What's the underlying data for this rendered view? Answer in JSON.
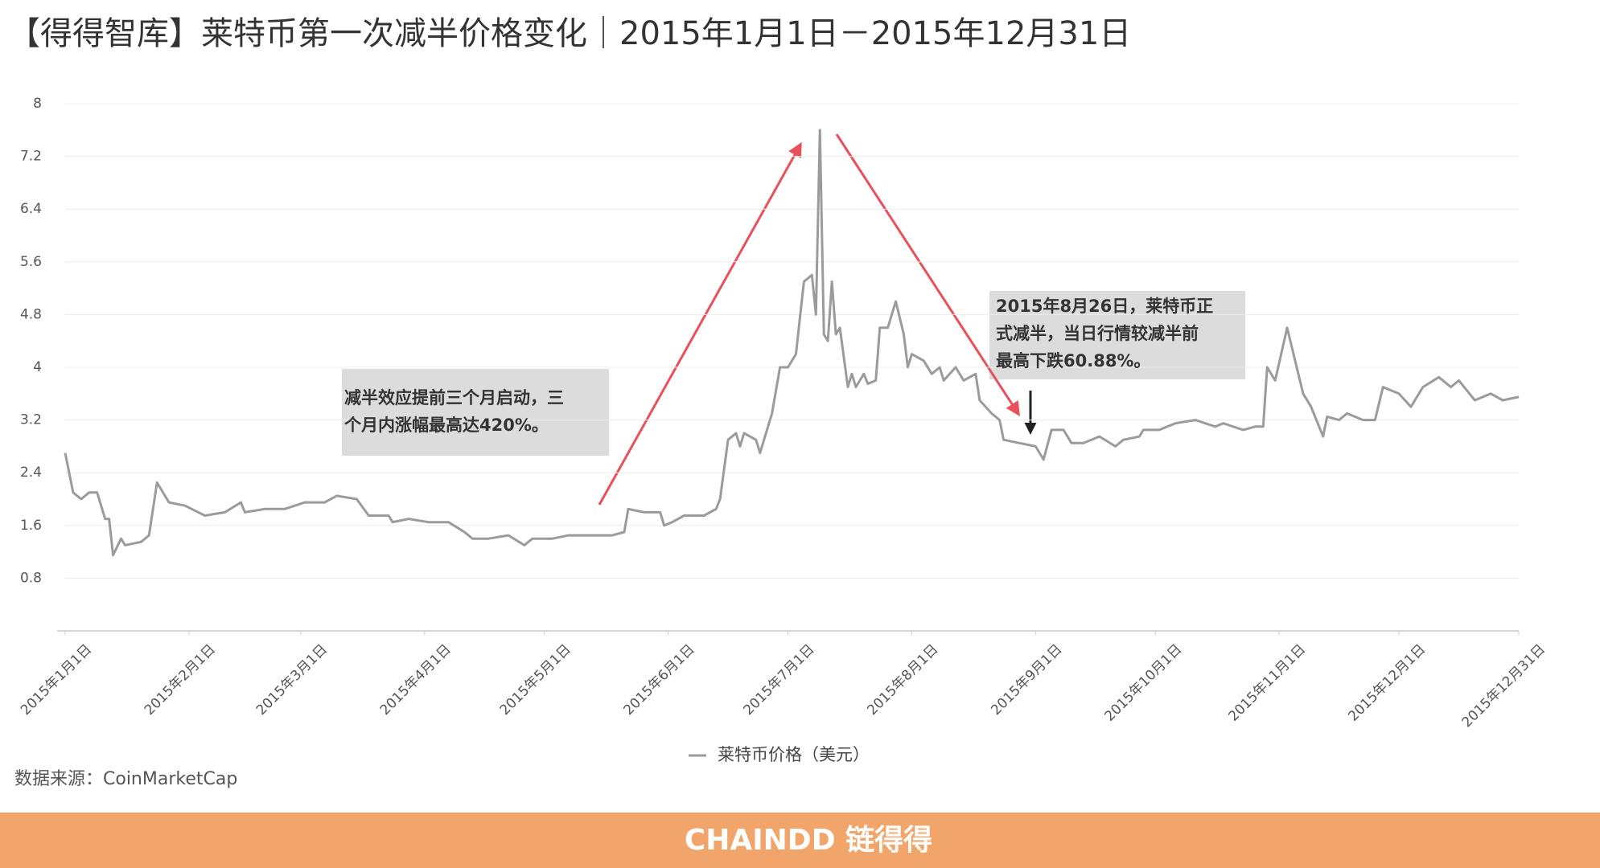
{
  "chart_data": {
    "type": "line",
    "title": "【得得智库】莱特币第一次减半价格变化｜2015年1月1日－2015年12月31日",
    "source": "数据来源：CoinMarketCap",
    "footer_logo": "CHAINDD 链得得",
    "annotations": [
      {
        "lines": [
          "减半效应提前三个月启动，三",
          "个月内涨幅最高达420%。"
        ]
      },
      {
        "lines": [
          "2015年8月26日，莱特币正",
          "式减半，当日行情较减半前",
          "最高下跌60.88%。"
        ]
      }
    ],
    "x": [
      "2015-01-01",
      "2015-01-03",
      "2015-01-05",
      "2015-01-07",
      "2015-01-09",
      "2015-01-10",
      "2015-01-11",
      "2015-01-12",
      "2015-01-13",
      "2015-01-15",
      "2015-01-16",
      "2015-01-20",
      "2015-01-22",
      "2015-01-24",
      "2015-01-27",
      "2015-01-31",
      "2015-02-05",
      "2015-02-10",
      "2015-02-14",
      "2015-02-15",
      "2015-02-20",
      "2015-02-25",
      "2015-03-02",
      "2015-03-07",
      "2015-03-10",
      "2015-03-15",
      "2015-03-18",
      "2015-03-23",
      "2015-03-24",
      "2015-03-28",
      "2015-04-02",
      "2015-04-07",
      "2015-04-11",
      "2015-04-13",
      "2015-04-17",
      "2015-04-22",
      "2015-04-26",
      "2015-04-28",
      "2015-05-03",
      "2015-05-07",
      "2015-05-10",
      "2015-05-18",
      "2015-05-21",
      "2015-05-22",
      "2015-05-26",
      "2015-05-30",
      "2015-05-31",
      "2015-06-02",
      "2015-06-05",
      "2015-06-10",
      "2015-06-13",
      "2015-06-14",
      "2015-06-16",
      "2015-06-18",
      "2015-06-19",
      "2015-06-20",
      "2015-06-23",
      "2015-06-24",
      "2015-06-25",
      "2015-06-27",
      "2015-06-29",
      "2015-07-01",
      "2015-07-03",
      "2015-07-05",
      "2015-07-07",
      "2015-07-08",
      "2015-07-09",
      "2015-07-10",
      "2015-07-11",
      "2015-07-12",
      "2015-07-13",
      "2015-07-14",
      "2015-07-16",
      "2015-07-17",
      "2015-07-18",
      "2015-07-20",
      "2015-07-21",
      "2015-07-23",
      "2015-07-24",
      "2015-07-26",
      "2015-07-28",
      "2015-07-30",
      "2015-07-31",
      "2015-08-01",
      "2015-08-04",
      "2015-08-06",
      "2015-08-08",
      "2015-08-09",
      "2015-08-12",
      "2015-08-14",
      "2015-08-17",
      "2015-08-18",
      "2015-08-21",
      "2015-08-23",
      "2015-08-24",
      "2015-08-28",
      "2015-09-01",
      "2015-09-03",
      "2015-09-05",
      "2015-09-08",
      "2015-09-10",
      "2015-09-13",
      "2015-09-17",
      "2015-09-21",
      "2015-09-23",
      "2015-09-27",
      "2015-09-28",
      "2015-10-02",
      "2015-10-06",
      "2015-10-11",
      "2015-10-16",
      "2015-10-18",
      "2015-10-23",
      "2015-10-26",
      "2015-10-28",
      "2015-10-29",
      "2015-10-31",
      "2015-11-03",
      "2015-11-07",
      "2015-11-09",
      "2015-11-12",
      "2015-11-13",
      "2015-11-16",
      "2015-11-18",
      "2015-11-22",
      "2015-11-25",
      "2015-11-27",
      "2015-12-01",
      "2015-12-04",
      "2015-12-07",
      "2015-12-11",
      "2015-12-14",
      "2015-12-16",
      "2015-12-20",
      "2015-12-24",
      "2015-12-27",
      "2015-12-31"
    ],
    "series": [
      {
        "name": "莱特币价格（美元）",
        "color": "#9b9b9b",
        "values": [
          2.7,
          2.1,
          2.0,
          2.1,
          2.1,
          1.9,
          1.7,
          1.7,
          1.15,
          1.4,
          1.3,
          1.35,
          1.45,
          2.25,
          1.95,
          1.9,
          1.75,
          1.8,
          1.95,
          1.8,
          1.85,
          1.85,
          1.95,
          1.95,
          2.05,
          2.0,
          1.75,
          1.75,
          1.65,
          1.7,
          1.65,
          1.65,
          1.5,
          1.4,
          1.4,
          1.45,
          1.3,
          1.4,
          1.4,
          1.45,
          1.45,
          1.45,
          1.5,
          1.85,
          1.8,
          1.8,
          1.6,
          1.65,
          1.75,
          1.75,
          1.85,
          2.0,
          2.9,
          3.0,
          2.8,
          3.0,
          2.9,
          2.7,
          2.9,
          3.3,
          4.0,
          4.0,
          4.2,
          5.3,
          5.4,
          4.8,
          7.6,
          4.5,
          4.4,
          5.3,
          4.5,
          4.6,
          3.7,
          3.9,
          3.7,
          3.9,
          3.75,
          3.8,
          4.6,
          4.6,
          5.0,
          4.5,
          4.0,
          4.2,
          4.1,
          3.9,
          4.0,
          3.8,
          4.0,
          3.8,
          3.9,
          3.5,
          3.3,
          3.2,
          2.9,
          2.85,
          2.8,
          2.6,
          3.05,
          3.05,
          2.85,
          2.85,
          2.95,
          2.8,
          2.9,
          2.95,
          3.05,
          3.05,
          3.15,
          3.2,
          3.1,
          3.15,
          3.05,
          3.1,
          3.1,
          4.0,
          3.8,
          4.6,
          3.6,
          3.4,
          2.95,
          3.25,
          3.2,
          3.3,
          3.2,
          3.2,
          3.7,
          3.6,
          3.4,
          3.7,
          3.85,
          3.7,
          3.8,
          3.5,
          3.6,
          3.5,
          3.55
        ]
      }
    ],
    "xlim": [
      "2015-01-01",
      "2015-12-31"
    ],
    "xticks": [
      {
        "value": "2015-01-01",
        "label": "2015年1月1日"
      },
      {
        "value": "2015-02-01",
        "label": "2015年2月1日"
      },
      {
        "value": "2015-03-01",
        "label": "2015年3月1日"
      },
      {
        "value": "2015-04-01",
        "label": "2015年4月1日"
      },
      {
        "value": "2015-05-01",
        "label": "2015年5月1日"
      },
      {
        "value": "2015-06-01",
        "label": "2015年6月1日"
      },
      {
        "value": "2015-07-01",
        "label": "2015年7月1日"
      },
      {
        "value": "2015-08-01",
        "label": "2015年8月1日"
      },
      {
        "value": "2015-09-01",
        "label": "2015年9月1日"
      },
      {
        "value": "2015-10-01",
        "label": "2015年10月1日"
      },
      {
        "value": "2015-11-01",
        "label": "2015年11月1日"
      },
      {
        "value": "2015-12-01",
        "label": "2015年12月1日"
      },
      {
        "value": "2015-12-31",
        "label": "2015年12月31日"
      }
    ],
    "ylim": [
      0,
      8
    ],
    "yticks": [
      0.8,
      1.6,
      2.4,
      3.2,
      4,
      4.8,
      5.6,
      6.4,
      7.2,
      8
    ],
    "grid": true
  }
}
